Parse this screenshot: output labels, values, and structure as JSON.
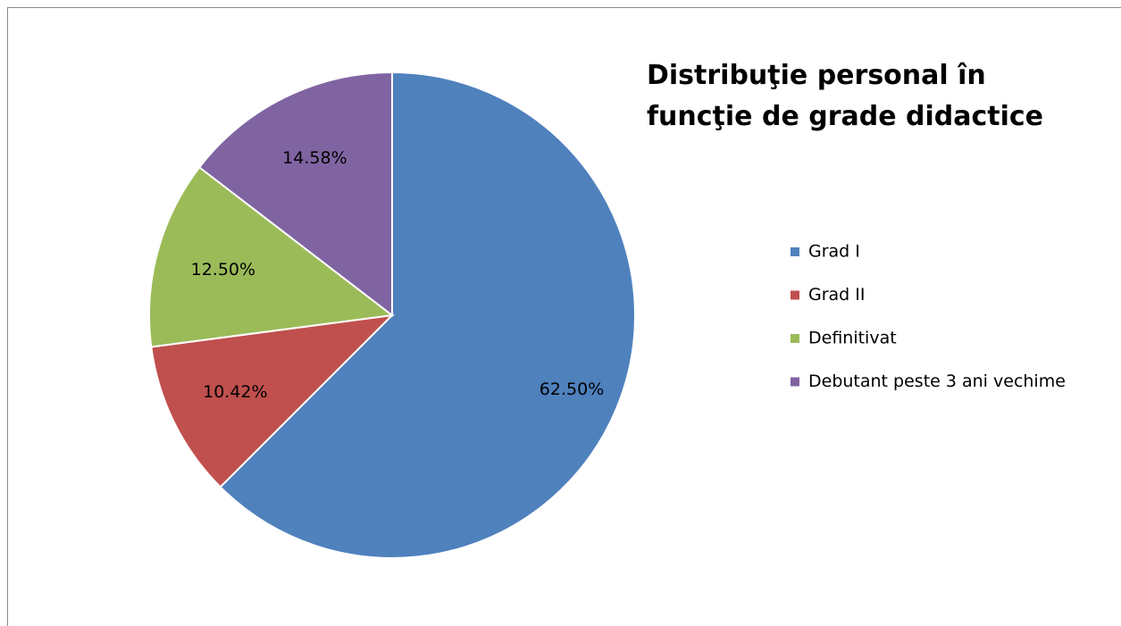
{
  "chart_data": {
    "type": "pie",
    "title": "Distribuţie personal în funcţie de grade didactice",
    "categories": [
      "Grad I",
      "Grad II",
      "Definitivat",
      "Debutant peste 3 ani vechime"
    ],
    "values": [
      62.5,
      10.42,
      12.5,
      14.58
    ],
    "value_labels": [
      "62.50%",
      "10.42%",
      "12.50%",
      "14.58%"
    ],
    "colors": [
      "#4f81bd",
      "#c0504d",
      "#9bbb59",
      "#8064a2"
    ],
    "legend": "right"
  }
}
